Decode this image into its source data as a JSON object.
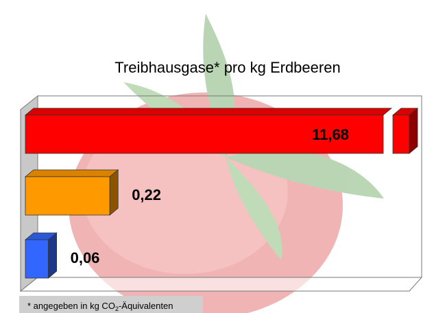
{
  "chart_data": {
    "type": "bar3d",
    "orientation": "horizontal",
    "title": "Treibhausgase* pro kg Erdbeeren",
    "values": [
      11.68,
      0.22,
      0.06
    ],
    "value_labels": [
      "11,68",
      "0,22",
      "0,06"
    ],
    "colors": [
      "#ff0000",
      "#ff9900",
      "#3366ff"
    ],
    "xlim": [
      0,
      1
    ],
    "axis_break": true,
    "footnote": [
      "* angegeben in kg CO",
      "2",
      "-Äquivalenten"
    ]
  }
}
